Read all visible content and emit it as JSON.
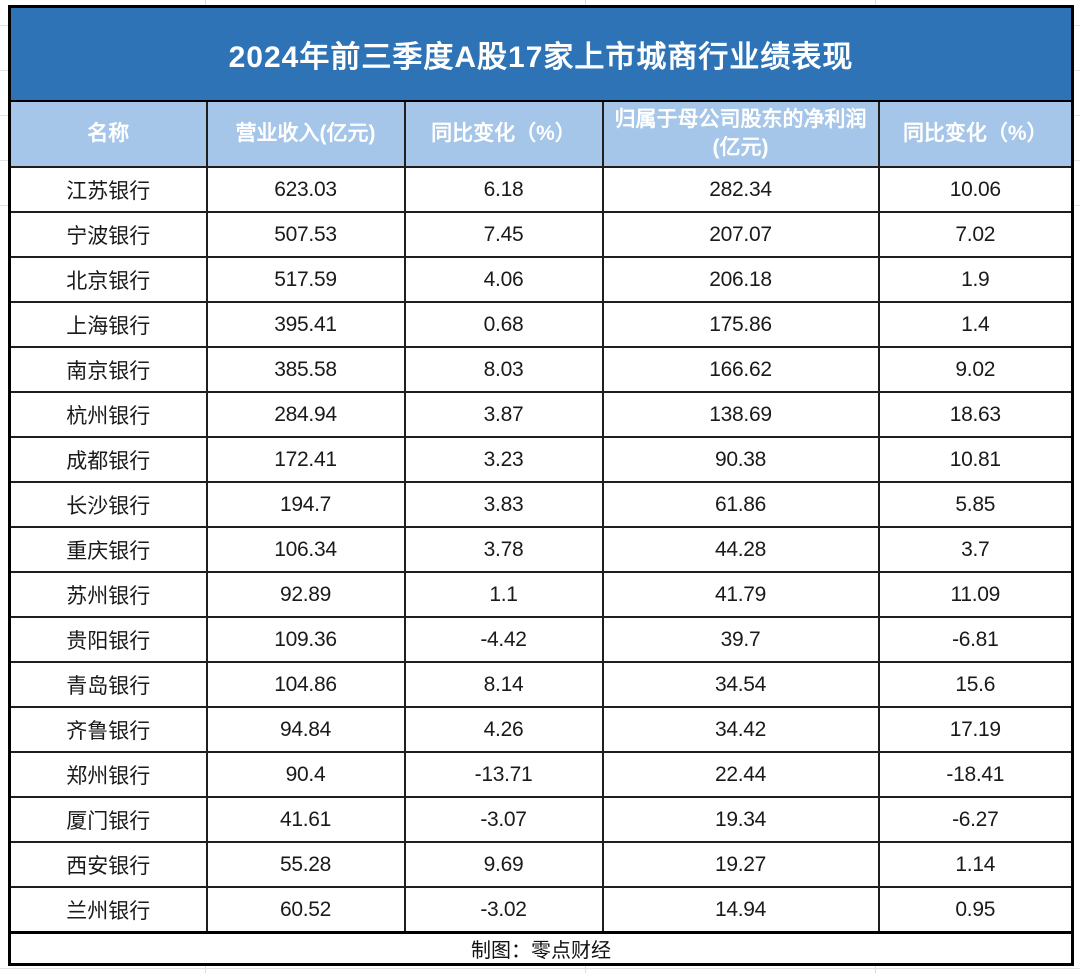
{
  "chart_data": {
    "type": "table",
    "title": "2024年前三季度A股17家上市城商行业绩表现",
    "columns": [
      "名称",
      "营业收入(亿元)",
      "同比变化（%）",
      "归属于母公司股东的净利润(亿元)",
      "同比变化（%）"
    ],
    "rows": [
      [
        "江苏银行",
        "623.03",
        "6.18",
        "282.34",
        "10.06"
      ],
      [
        "宁波银行",
        "507.53",
        "7.45",
        "207.07",
        "7.02"
      ],
      [
        "北京银行",
        "517.59",
        "4.06",
        "206.18",
        "1.9"
      ],
      [
        "上海银行",
        "395.41",
        "0.68",
        "175.86",
        "1.4"
      ],
      [
        "南京银行",
        "385.58",
        "8.03",
        "166.62",
        "9.02"
      ],
      [
        "杭州银行",
        "284.94",
        "3.87",
        "138.69",
        "18.63"
      ],
      [
        "成都银行",
        "172.41",
        "3.23",
        "90.38",
        "10.81"
      ],
      [
        "长沙银行",
        "194.7",
        "3.83",
        "61.86",
        "5.85"
      ],
      [
        "重庆银行",
        "106.34",
        "3.78",
        "44.28",
        "3.7"
      ],
      [
        "苏州银行",
        "92.89",
        "1.1",
        "41.79",
        "11.09"
      ],
      [
        "贵阳银行",
        "109.36",
        "-4.42",
        "39.7",
        "-6.81"
      ],
      [
        "青岛银行",
        "104.86",
        "8.14",
        "34.54",
        "15.6"
      ],
      [
        "齐鲁银行",
        "94.84",
        "4.26",
        "34.42",
        "17.19"
      ],
      [
        "郑州银行",
        "90.4",
        "-13.71",
        "22.44",
        "-18.41"
      ],
      [
        "厦门银行",
        "41.61",
        "-3.07",
        "19.34",
        "-6.27"
      ],
      [
        "西安银行",
        "55.28",
        "9.69",
        "19.27",
        "1.14"
      ],
      [
        "兰州银行",
        "60.52",
        "-3.02",
        "14.94",
        "0.95"
      ]
    ],
    "footer": "制图：零点财经"
  },
  "colors": {
    "title_bg": "#2E73B5",
    "title_text": "#FFFFFF",
    "header_bg": "#A5C6E8",
    "header_text": "#FFFFFF",
    "body_text": "#1A1A1A",
    "border": "#000000"
  }
}
